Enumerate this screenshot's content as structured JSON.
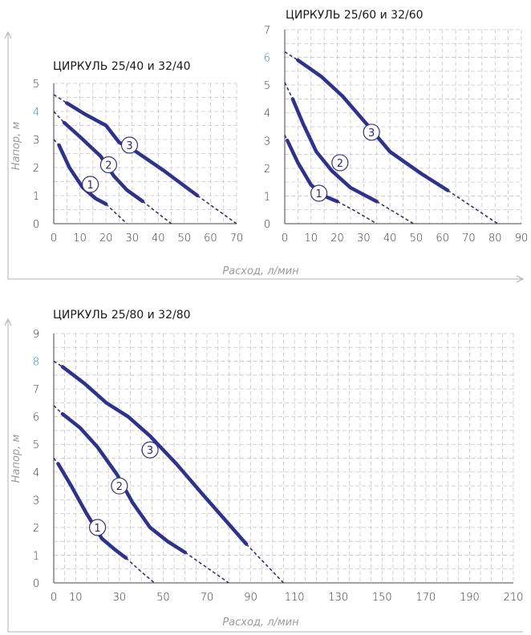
{
  "chart_data": [
    {
      "type": "line",
      "title": "ЦИРКУЛЬ 25/40 и 32/40",
      "ylabel": "Напор, м",
      "xlabel": "Расход, л/мин",
      "xticks": [
        0,
        10,
        20,
        30,
        40,
        50,
        60,
        70
      ],
      "yticks": [
        0,
        1,
        2,
        3,
        4,
        5
      ],
      "xlim": [
        0,
        70
      ],
      "ylim": [
        0,
        5
      ],
      "highlight_ytick": 4,
      "highlight_color": "#1e8fc0",
      "line_color": "#2e3192",
      "grid": true,
      "series": [
        {
          "name": "1",
          "solid": [
            [
              2,
              2.8
            ],
            [
              6,
              2.0
            ],
            [
              11,
              1.3
            ],
            [
              16,
              0.9
            ],
            [
              20,
              0.7
            ]
          ],
          "dashed": [
            [
              0,
              3.0
            ],
            [
              2,
              2.8
            ],
            [
              20,
              0.7
            ],
            [
              28,
              0.0
            ]
          ],
          "marker": [
            14,
            1.4
          ]
        },
        {
          "name": "2",
          "solid": [
            [
              4,
              3.6
            ],
            [
              10,
              3.1
            ],
            [
              18,
              2.4
            ],
            [
              23,
              1.7
            ],
            [
              28,
              1.2
            ],
            [
              34,
              0.8
            ]
          ],
          "dashed": [
            [
              0,
              4.0
            ],
            [
              4,
              3.6
            ],
            [
              34,
              0.8
            ],
            [
              45,
              0.0
            ]
          ],
          "marker": [
            21,
            2.1
          ]
        },
        {
          "name": "3",
          "solid": [
            [
              5,
              4.3
            ],
            [
              12,
              3.9
            ],
            [
              20,
              3.5
            ],
            [
              25,
              2.9
            ],
            [
              31,
              2.6
            ],
            [
              42,
              1.9
            ],
            [
              55,
              1.0
            ]
          ],
          "dashed": [
            [
              0,
              4.6
            ],
            [
              5,
              4.3
            ],
            [
              55,
              1.0
            ],
            [
              61,
              0.6
            ],
            [
              70,
              0.0
            ]
          ],
          "marker": [
            29,
            2.8
          ]
        }
      ]
    },
    {
      "type": "line",
      "title": "ЦИРКУЛЬ 25/60 и 32/60",
      "ylabel": "",
      "xlabel": "",
      "xticks": [
        0,
        10,
        20,
        30,
        40,
        50,
        60,
        70,
        80,
        90
      ],
      "yticks": [
        0,
        1,
        2,
        3,
        4,
        5,
        6,
        7
      ],
      "xlim": [
        0,
        90
      ],
      "ylim": [
        0,
        7
      ],
      "highlight_ytick": 6,
      "highlight_color": "#1e8fc0",
      "line_color": "#2e3192",
      "grid": true,
      "series": [
        {
          "name": "1",
          "solid": [
            [
              1,
              3.0
            ],
            [
              5,
              2.2
            ],
            [
              10,
              1.4
            ],
            [
              15,
              1.0
            ],
            [
              20,
              0.8
            ]
          ],
          "dashed": [
            [
              0,
              3.2
            ],
            [
              1,
              3.0
            ],
            [
              20,
              0.8
            ],
            [
              26,
              0.5
            ],
            [
              35,
              0.0
            ]
          ],
          "marker": [
            13,
            1.1
          ]
        },
        {
          "name": "2",
          "solid": [
            [
              3,
              4.5
            ],
            [
              7,
              3.6
            ],
            [
              12,
              2.6
            ],
            [
              18,
              1.9
            ],
            [
              25,
              1.3
            ],
            [
              35,
              0.8
            ]
          ],
          "dashed": [
            [
              0,
              5.1
            ],
            [
              3,
              4.5
            ],
            [
              35,
              0.8
            ],
            [
              49,
              0.0
            ]
          ],
          "marker": [
            21,
            2.2
          ]
        },
        {
          "name": "3",
          "solid": [
            [
              5,
              5.9
            ],
            [
              14,
              5.3
            ],
            [
              22,
              4.6
            ],
            [
              32,
              3.5
            ],
            [
              40,
              2.6
            ],
            [
              52,
              1.8
            ],
            [
              62,
              1.2
            ]
          ],
          "dashed": [
            [
              0,
              6.2
            ],
            [
              5,
              5.9
            ],
            [
              62,
              1.2
            ],
            [
              81,
              0.0
            ]
          ],
          "marker": [
            33,
            3.3
          ]
        }
      ]
    },
    {
      "type": "line",
      "title": "ЦИРКУЛЬ 25/80 и 32/80",
      "ylabel": "Напор, м",
      "xlabel": "Расход, л/мин",
      "xticks": [
        0,
        10,
        30,
        50,
        70,
        90,
        110,
        130,
        150,
        170,
        190,
        210
      ],
      "xgrid": [
        0,
        10,
        20,
        30,
        40,
        50,
        60,
        70,
        80,
        90,
        100,
        110,
        120,
        130,
        140,
        150,
        160,
        170,
        180,
        190,
        200,
        210
      ],
      "yticks": [
        0,
        1,
        2,
        3,
        4,
        5,
        6,
        7,
        8,
        9
      ],
      "xlim": [
        0,
        210
      ],
      "ylim": [
        0,
        9
      ],
      "highlight_ytick": 8,
      "highlight_color": "#1e8fc0",
      "line_color": "#2e3192",
      "grid": true,
      "series": [
        {
          "name": "1",
          "solid": [
            [
              2,
              4.3
            ],
            [
              8,
              3.5
            ],
            [
              15,
              2.5
            ],
            [
              22,
              1.6
            ],
            [
              28,
              1.2
            ],
            [
              33,
              0.9
            ]
          ],
          "dashed": [
            [
              0,
              4.5
            ],
            [
              2,
              4.3
            ],
            [
              33,
              0.9
            ],
            [
              40,
              0.4
            ],
            [
              46,
              0.0
            ]
          ],
          "marker": [
            20,
            2.0
          ]
        },
        {
          "name": "2",
          "solid": [
            [
              4,
              6.1
            ],
            [
              12,
              5.6
            ],
            [
              20,
              4.9
            ],
            [
              29,
              3.9
            ],
            [
              36,
              2.9
            ],
            [
              44,
              2.0
            ],
            [
              52,
              1.5
            ],
            [
              60,
              1.1
            ]
          ],
          "dashed": [
            [
              0,
              6.4
            ],
            [
              4,
              6.1
            ],
            [
              60,
              1.1
            ],
            [
              80,
              0.0
            ]
          ],
          "marker": [
            30,
            3.5
          ]
        },
        {
          "name": "3",
          "solid": [
            [
              4,
              7.8
            ],
            [
              14,
              7.2
            ],
            [
              24,
              6.5
            ],
            [
              34,
              6.0
            ],
            [
              44,
              5.3
            ],
            [
              56,
              4.3
            ],
            [
              68,
              3.2
            ],
            [
              78,
              2.3
            ],
            [
              88,
              1.4
            ]
          ],
          "dashed": [
            [
              0,
              8.0
            ],
            [
              4,
              7.8
            ],
            [
              88,
              1.4
            ],
            [
              105,
              0.0
            ]
          ],
          "marker": [
            44,
            4.8
          ]
        }
      ]
    }
  ]
}
